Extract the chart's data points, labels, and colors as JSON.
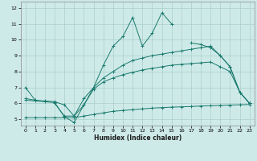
{
  "x_values": [
    0,
    1,
    2,
    3,
    4,
    5,
    6,
    7,
    8,
    9,
    10,
    11,
    12,
    13,
    14,
    15,
    16,
    17,
    18,
    19,
    20,
    21,
    22,
    23
  ],
  "line1": [
    7.0,
    6.2,
    null,
    6.0,
    5.2,
    5.2,
    5.9,
    7.0,
    8.4,
    9.6,
    10.2,
    11.4,
    9.6,
    10.4,
    11.7,
    11.0,
    null,
    9.8,
    9.7,
    9.5,
    9.0,
    8.3,
    6.7,
    6.0
  ],
  "line2": [
    6.3,
    6.2,
    6.15,
    6.1,
    5.9,
    5.2,
    6.3,
    7.0,
    7.6,
    8.0,
    8.4,
    8.7,
    8.85,
    9.0,
    9.1,
    9.2,
    9.3,
    9.4,
    9.5,
    9.6,
    9.0,
    8.3,
    6.7,
    6.0
  ],
  "line3": [
    6.2,
    6.15,
    6.1,
    6.05,
    5.15,
    4.8,
    5.9,
    6.9,
    7.35,
    7.6,
    7.8,
    7.95,
    8.1,
    8.2,
    8.3,
    8.4,
    8.45,
    8.5,
    8.55,
    8.6,
    8.3,
    8.0,
    6.7,
    6.0
  ],
  "line4": [
    5.1,
    5.1,
    5.1,
    5.1,
    5.1,
    5.1,
    5.2,
    5.3,
    5.4,
    5.5,
    5.55,
    5.6,
    5.65,
    5.7,
    5.73,
    5.76,
    5.78,
    5.8,
    5.83,
    5.85,
    5.87,
    5.89,
    5.91,
    5.93
  ],
  "color": "#1a7a6e",
  "bg_color": "#ceeae8",
  "grid_color": "#aacfcc",
  "xlabel": "Humidex (Indice chaleur)",
  "ylim": [
    4.6,
    12.4
  ],
  "xlim": [
    -0.5,
    23.5
  ],
  "yticks": [
    5,
    6,
    7,
    8,
    9,
    10,
    11,
    12
  ],
  "xticks": [
    0,
    1,
    2,
    3,
    4,
    5,
    6,
    7,
    8,
    9,
    10,
    11,
    12,
    13,
    14,
    15,
    16,
    17,
    18,
    19,
    20,
    21,
    22,
    23
  ]
}
